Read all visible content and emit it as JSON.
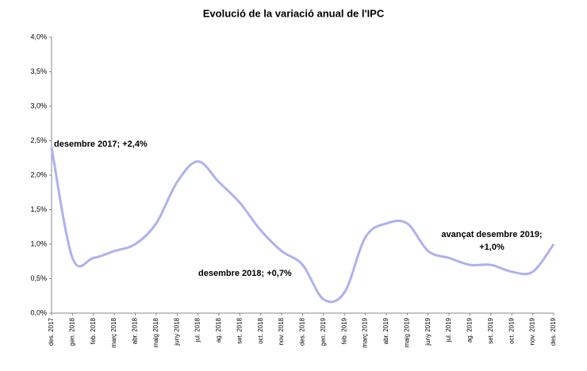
{
  "chart_data": {
    "type": "line",
    "title": "Evolució de la variació anual de l'IPC",
    "categories": [
      "des. 2017",
      "gen. 2018",
      "feb. 2018",
      "març 2018",
      "abr. 2018",
      "maig 2018",
      "juny 2018",
      "jul. 2018",
      "ag. 2018",
      "set. 2018",
      "oct. 2018",
      "nov. 2018",
      "des. 2018",
      "gen. 2019",
      "feb. 2019",
      "març 2019",
      "abr. 2019",
      "maig 2019",
      "juny 2019",
      "jul. 2019",
      "ag. 2019",
      "set. 2019",
      "oct. 2019",
      "nov. 2019",
      "des. 2019"
    ],
    "values": [
      2.4,
      0.8,
      0.8,
      0.9,
      1.0,
      1.3,
      1.9,
      2.2,
      1.9,
      1.6,
      1.2,
      0.9,
      0.7,
      0.2,
      0.3,
      1.1,
      1.3,
      1.3,
      0.9,
      0.8,
      0.7,
      0.7,
      0.6,
      0.6,
      1.0
    ],
    "color": "#aeb1ef",
    "ylim": [
      0,
      4
    ],
    "yticks": [
      {
        "value": 0,
        "label": "0,0%"
      },
      {
        "value": 0.5,
        "label": "0,5%"
      },
      {
        "value": 1,
        "label": "1,0%"
      },
      {
        "value": 1.5,
        "label": "1,5%"
      },
      {
        "value": 2,
        "label": "2,0%"
      },
      {
        "value": 2.5,
        "label": "2,5%"
      },
      {
        "value": 3,
        "label": "3,0%"
      },
      {
        "value": 3.5,
        "label": "3,5%"
      },
      {
        "value": 4,
        "label": "4,0%"
      }
    ],
    "grid": false,
    "annotations": [
      [
        "desembre 2017; +2,4%"
      ],
      [
        "desembre 2018;  +0,7%"
      ],
      [
        "avançat desembre 2019;",
        "+1,0%"
      ]
    ]
  }
}
